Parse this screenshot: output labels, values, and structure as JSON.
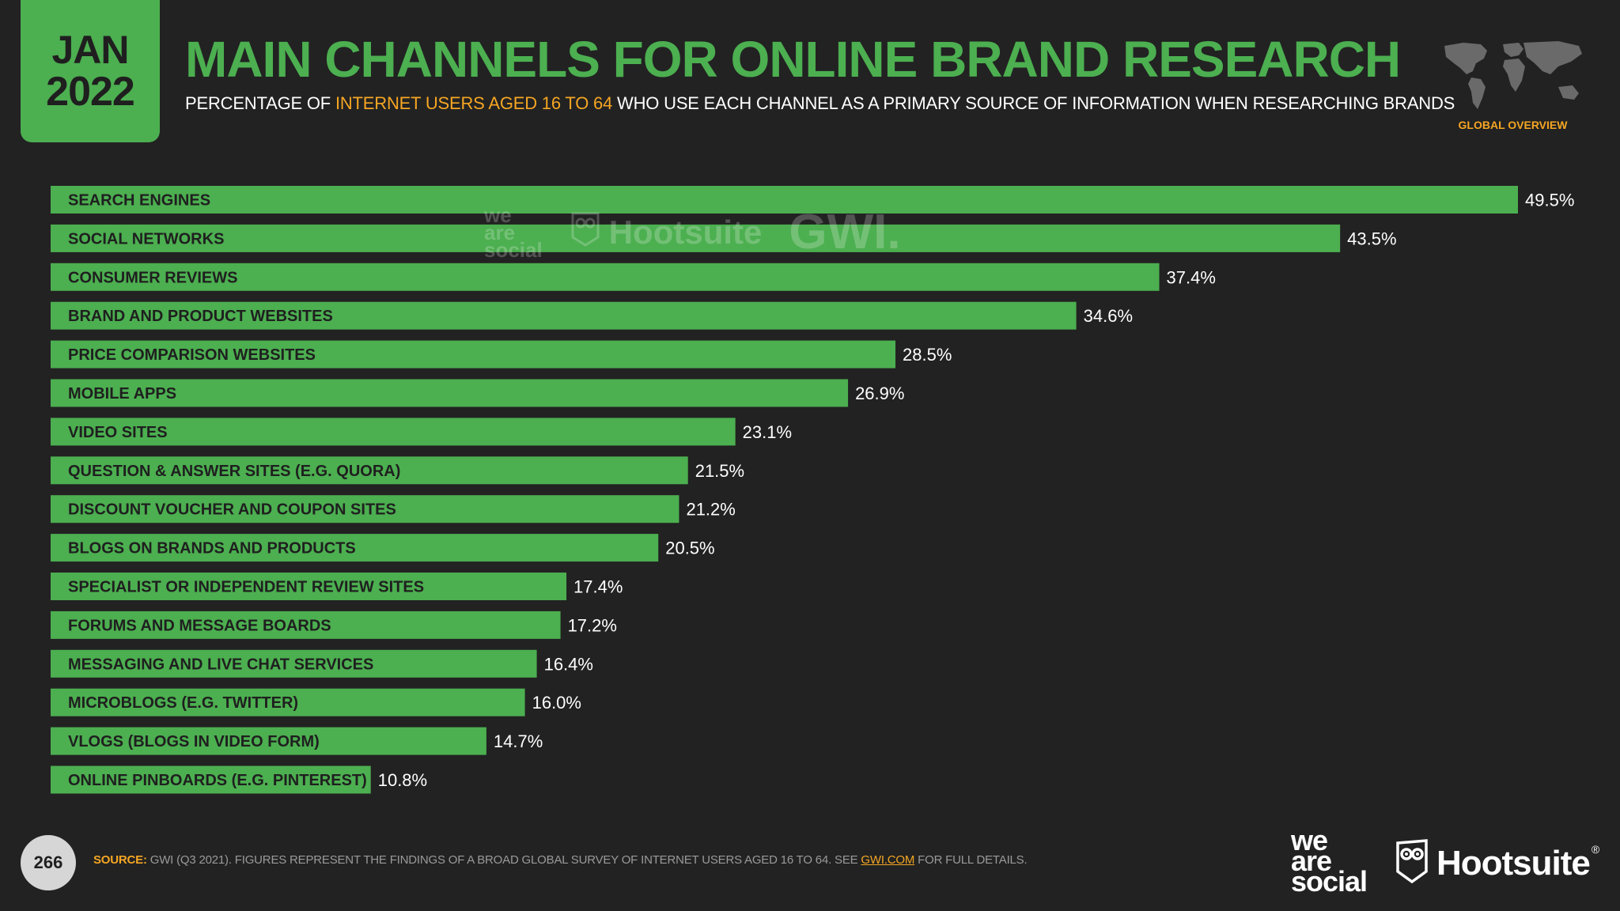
{
  "header": {
    "month": "JAN",
    "year": "2022",
    "title": "MAIN CHANNELS FOR ONLINE BRAND RESEARCH",
    "subtitle_pre": "PERCENTAGE OF ",
    "subtitle_highlight": "INTERNET USERS AGED 16 TO 64",
    "subtitle_post": " WHO USE EACH CHANNEL AS A PRIMARY SOURCE OF INFORMATION WHEN RESEARCHING BRANDS",
    "region_label": "GLOBAL OVERVIEW"
  },
  "colors": {
    "accent": "#4caf50",
    "highlight": "#f5a623",
    "background": "#222222"
  },
  "watermark": {
    "we_are_social": [
      "we",
      "are",
      "social"
    ],
    "hootsuite": "Hootsuite",
    "gwi": "GWI."
  },
  "chart_data": {
    "type": "bar",
    "orientation": "horizontal",
    "categories": [
      "SEARCH ENGINES",
      "SOCIAL NETWORKS",
      "CONSUMER REVIEWS",
      "BRAND AND PRODUCT WEBSITES",
      "PRICE COMPARISON WEBSITES",
      "MOBILE APPS",
      "VIDEO SITES",
      "QUESTION & ANSWER SITES (E.G. QUORA)",
      "DISCOUNT VOUCHER AND COUPON SITES",
      "BLOGS ON BRANDS AND PRODUCTS",
      "SPECIALIST OR INDEPENDENT REVIEW SITES",
      "FORUMS AND MESSAGE BOARDS",
      "MESSAGING AND LIVE CHAT SERVICES",
      "MICROBLOGS (E.G. TWITTER)",
      "VLOGS (BLOGS IN VIDEO FORM)",
      "ONLINE PINBOARDS (E.G. PINTEREST)"
    ],
    "values": [
      49.5,
      43.5,
      37.4,
      34.6,
      28.5,
      26.9,
      23.1,
      21.5,
      21.2,
      20.5,
      17.4,
      17.2,
      16.4,
      16.0,
      14.7,
      10.8
    ],
    "value_labels": [
      "49.5%",
      "43.5%",
      "37.4%",
      "34.6%",
      "28.5%",
      "26.9%",
      "23.1%",
      "21.5%",
      "21.2%",
      "20.5%",
      "17.4%",
      "17.2%",
      "16.4%",
      "16.0%",
      "14.7%",
      "10.8%"
    ],
    "xlim": [
      0,
      49.5
    ],
    "grid": false,
    "legend": "none"
  },
  "footer": {
    "page_number": "266",
    "source_label": "SOURCE:",
    "source_text": " GWI (Q3 2021). FIGURES REPRESENT THE FINDINGS OF A BROAD GLOBAL SURVEY OF INTERNET USERS AGED 16 TO 64. SEE ",
    "source_link": "GWI.COM",
    "source_tail": " FOR FULL DETAILS.",
    "brand_we": [
      "we",
      "are",
      "social"
    ],
    "brand_hootsuite": "Hootsuite",
    "brand_reg": "®"
  }
}
